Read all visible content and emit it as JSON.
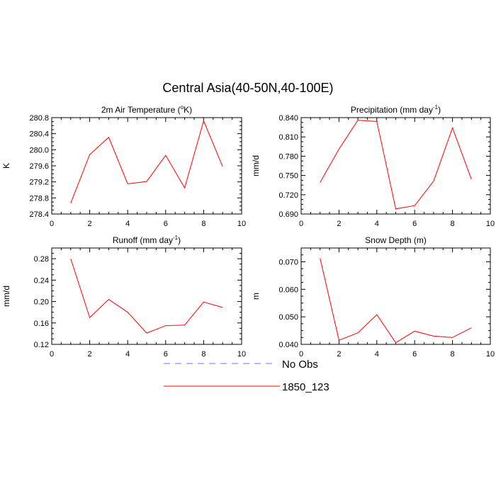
{
  "figure": {
    "title": "Central Asia(40-50N,40-100E)",
    "legend": [
      {
        "label": "No Obs",
        "color": "#7070ff",
        "dash": "dashed"
      },
      {
        "label": "1850_123",
        "color": "#ff0000",
        "dash": "solid"
      }
    ]
  },
  "chart_data": [
    {
      "type": "line",
      "title": "2m Air Temperature (",
      "title_unit": "o",
      "title_unit_mode": "sup",
      "title_tail": "K)",
      "ylabel": "K",
      "xlim": [
        0,
        10
      ],
      "ylim": [
        278.4,
        280.8
      ],
      "xticks": [
        0,
        2,
        4,
        6,
        8,
        10
      ],
      "yticks": [
        "278.4",
        "278.8",
        "279.2",
        "279.6",
        "280.0",
        "280.4",
        "280.8"
      ],
      "series": [
        {
          "name": "1850_123",
          "color": "#ff0000",
          "x": [
            1,
            2,
            3,
            4,
            5,
            6,
            7,
            8,
            9
          ],
          "y": [
            278.67,
            279.88,
            280.31,
            279.15,
            279.21,
            279.86,
            279.05,
            280.72,
            279.58
          ]
        }
      ]
    },
    {
      "type": "line",
      "title": "Precipitation (mm day",
      "title_unit": "-1",
      "title_unit_mode": "sup",
      "title_tail": ")",
      "ylabel": "mm/d",
      "xlim": [
        0,
        10
      ],
      "ylim": [
        0.69,
        0.84
      ],
      "xticks": [
        0,
        2,
        4,
        6,
        8,
        10
      ],
      "yticks": [
        "0.690",
        "0.720",
        "0.750",
        "0.780",
        "0.810",
        "0.840"
      ],
      "series": [
        {
          "name": "1850_123",
          "color": "#ff0000",
          "x": [
            1,
            2,
            3,
            4,
            5,
            6,
            7,
            8,
            9
          ],
          "y": [
            0.739,
            0.791,
            0.836,
            0.834,
            0.698,
            0.703,
            0.741,
            0.824,
            0.744
          ]
        }
      ]
    },
    {
      "type": "line",
      "title": "Runoff (mm day",
      "title_unit": "-1",
      "title_unit_mode": "sup",
      "title_tail": ")",
      "ylabel": "mm/d",
      "xlim": [
        0,
        10
      ],
      "ylim": [
        0.12,
        0.3
      ],
      "xticks": [
        0,
        2,
        4,
        6,
        8,
        10
      ],
      "yticks": [
        "0.12",
        "0.16",
        "0.20",
        "0.24",
        "0.28"
      ],
      "series": [
        {
          "name": "1850_123",
          "color": "#ff0000",
          "x": [
            1,
            2,
            3,
            4,
            5,
            6,
            7,
            8,
            9
          ],
          "y": [
            0.28,
            0.17,
            0.204,
            0.18,
            0.141,
            0.155,
            0.156,
            0.199,
            0.189
          ]
        }
      ]
    },
    {
      "type": "line",
      "title": "Snow Depth (m)",
      "title_unit": "",
      "title_unit_mode": "none",
      "title_tail": "",
      "ylabel": "m",
      "xlim": [
        0,
        10
      ],
      "ylim": [
        0.04,
        0.075
      ],
      "xticks": [
        0,
        2,
        4,
        6,
        8,
        10
      ],
      "yticks": [
        "0.040",
        "0.050",
        "0.060",
        "0.070"
      ],
      "series": [
        {
          "name": "1850_123",
          "color": "#ff0000",
          "x": [
            1,
            2,
            3,
            4,
            5,
            6,
            7,
            8,
            9
          ],
          "y": [
            0.0713,
            0.0415,
            0.0442,
            0.0508,
            0.0406,
            0.0448,
            0.043,
            0.0425,
            0.046
          ]
        }
      ]
    }
  ]
}
